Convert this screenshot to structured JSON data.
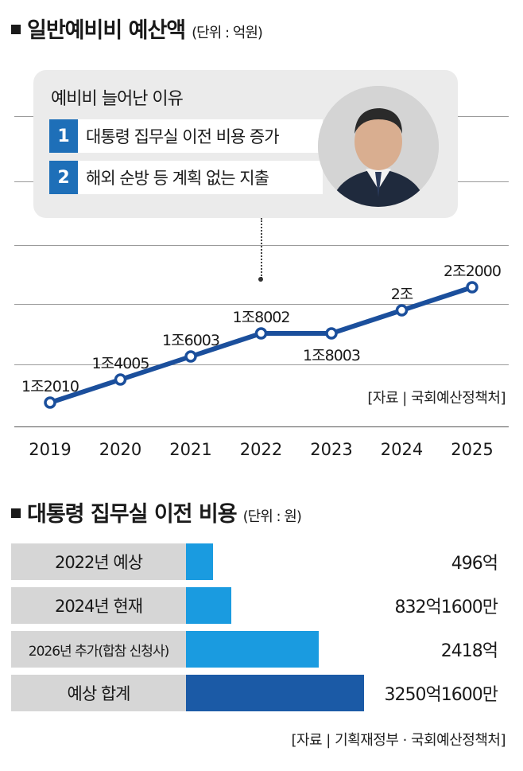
{
  "section1": {
    "title": "일반예비비 예산액",
    "unit": "(단위 : 억원)"
  },
  "callout": {
    "title": "예비비 늘어난 이유",
    "reasons": [
      {
        "num": "1",
        "text": "대통령 집무실 이전 비용 증가"
      },
      {
        "num": "2",
        "text": "해외 순방 등 계획 없는 지출"
      }
    ]
  },
  "chart_data": [
    {
      "type": "line",
      "title": "일반예비비 예산액",
      "unit": "억원",
      "x": [
        "2019",
        "2020",
        "2021",
        "2022",
        "2023",
        "2024",
        "2025"
      ],
      "values": [
        12010,
        14005,
        16003,
        18002,
        18003,
        20000,
        22000
      ],
      "data_labels": [
        "1조2010",
        "1조4005",
        "1조6003",
        "1조8002",
        "1조8003",
        "2조",
        "2조2000"
      ],
      "source": "[자료 | 국회예산정책처]",
      "color": "#1b4f9c",
      "ylim": [
        10000,
        24500
      ],
      "grid": true
    },
    {
      "type": "bar",
      "title": "대통령 집무실 이전 비용",
      "unit": "원",
      "categories": [
        "2022년 예상",
        "2024년 현재",
        "2026년 추가(합참 신청사)",
        "예상 합계"
      ],
      "values": [
        49600000000,
        83216000000,
        241800000000,
        325016000000
      ],
      "value_labels": [
        "496억",
        "832억1600만",
        "2418억",
        "3250억1600만"
      ],
      "colors": [
        "#1a9be0",
        "#1a9be0",
        "#1a9be0",
        "#1b5aa6"
      ],
      "source": "[자료 | 기획재정부 · 국회예산정책처]"
    }
  ],
  "section2": {
    "title": "대통령 집무실 이전 비용",
    "unit": "(단위 : 원)"
  }
}
